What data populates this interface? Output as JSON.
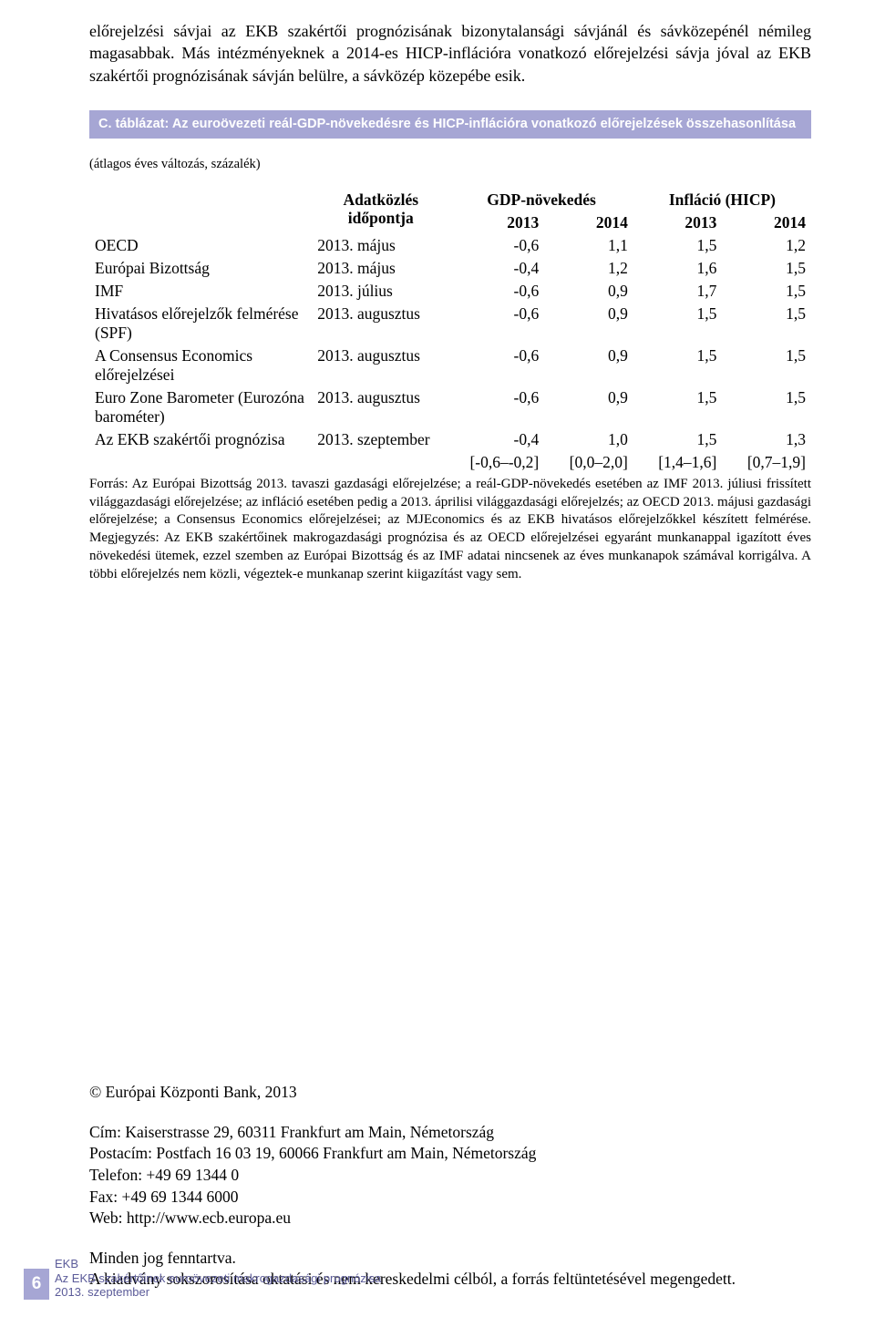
{
  "intro": "előrejelzési sávjai az EKB szakértői prognózisának bizonytalansági sávjánál és sávközepénél némileg magasabbak. Más intézményeknek a 2014-es HICP-inflációra vonatkozó előrejelzési sávja jóval az EKB szakértői prognózisának sávján belülre, a sávközép közepébe esik.",
  "tableTitle": "C. táblázat: Az euroövezeti reál-GDP-növekedésre és HICP-inflációra vonatkozó előrejelzések összehasonlítása",
  "avgNote": "(átlagos éves változás, százalék)",
  "headers": {
    "dateTop": "Adatközlés",
    "dateBottom": "időpontja",
    "gdp": "GDP-növekedés",
    "hicp": "Infláció (HICP)",
    "y13": "2013",
    "y14": "2014"
  },
  "rows": [
    {
      "name": "OECD",
      "date": "2013. május",
      "g13": "-0,6",
      "g14": "1,1",
      "h13": "1,5",
      "h14": "1,2"
    },
    {
      "name": "Európai Bizottság",
      "date": "2013. május",
      "g13": "-0,4",
      "g14": "1,2",
      "h13": "1,6",
      "h14": "1,5"
    },
    {
      "name": "IMF",
      "date": "2013. július",
      "g13": "-0,6",
      "g14": "0,9",
      "h13": "1,7",
      "h14": "1,5"
    },
    {
      "name": "Hivatásos előrejelzők felmérése (SPF)",
      "date": "2013. augusztus",
      "g13": "-0,6",
      "g14": "0,9",
      "h13": "1,5",
      "h14": "1,5"
    },
    {
      "name": "A Consensus Economics előrejelzései",
      "date": "2013. augusztus",
      "g13": "-0,6",
      "g14": "0,9",
      "h13": "1,5",
      "h14": "1,5"
    },
    {
      "name": "Euro Zone Barometer (Eurozóna barométer)",
      "date": "2013. augusztus",
      "g13": "-0,6",
      "g14": "0,9",
      "h13": "1,5",
      "h14": "1,5"
    },
    {
      "name": "Az EKB szakértői prognózisa",
      "date": "2013. szeptember",
      "g13": "-0,4",
      "g14": "1,0",
      "h13": "1,5",
      "h14": "1,3"
    }
  ],
  "ranges": {
    "g13": "[-0,6–-0,2]",
    "g14": "[0,0–2,0]",
    "h13": "[1,4–1,6]",
    "h14": "[0,7–1,9]"
  },
  "srcNotes": "Forrás: Az Európai Bizottság 2013. tavaszi gazdasági előrejelzése; a reál-GDP-növekedés esetében az IMF 2013. júliusi frissített világgazdasági előrejelzése; az infláció esetében pedig a 2013. áprilisi világgazdasági előrejelzés; az OECD 2013. májusi gazdasági előrejelzése; a Consensus Economics előrejelzései; az MJEconomics és az EKB hivatásos előrejelzőkkel készített felmérése. Megjegyzés: Az EKB szakértőinek makrogazdasági prognózisa és az OECD előrejelzései egyaránt munkanappal igazított éves növekedési ütemek, ezzel szemben az Európai Bizottság és az IMF adatai nincsenek az éves munkanapok számával korrigálva. A többi előrejelzés nem közli, végeztek-e munkanap szerint kiigazítást vagy sem.",
  "footer": {
    "copyright": "© Európai Központi Bank, 2013",
    "addr1": "Cím: Kaiserstrasse 29, 60311 Frankfurt am Main, Németország",
    "addr2": "Postacím: Postfach 16 03 19, 60066 Frankfurt am Main, Németország",
    "tel": "Telefon: +49 69 1344 0",
    "fax": "Fax: +49 69 1344 6000",
    "web": "Web: http://www.ecb.europa.eu",
    "rights1": "Minden jog fenntartva.",
    "rights2": "A kiadvány sokszorosítása oktatási és nem kereskedelmi célból, a forrás feltüntetésével megengedett."
  },
  "pageLabel": {
    "num": "6",
    "l1": "EKB",
    "l2": "Az EKB szakértőinek euroövezeti makrogazdasági prognózisa",
    "l3": "2013. szeptember"
  },
  "colors": {
    "headerBg": "#a6a6d4",
    "accentText": "#5b5b99"
  }
}
